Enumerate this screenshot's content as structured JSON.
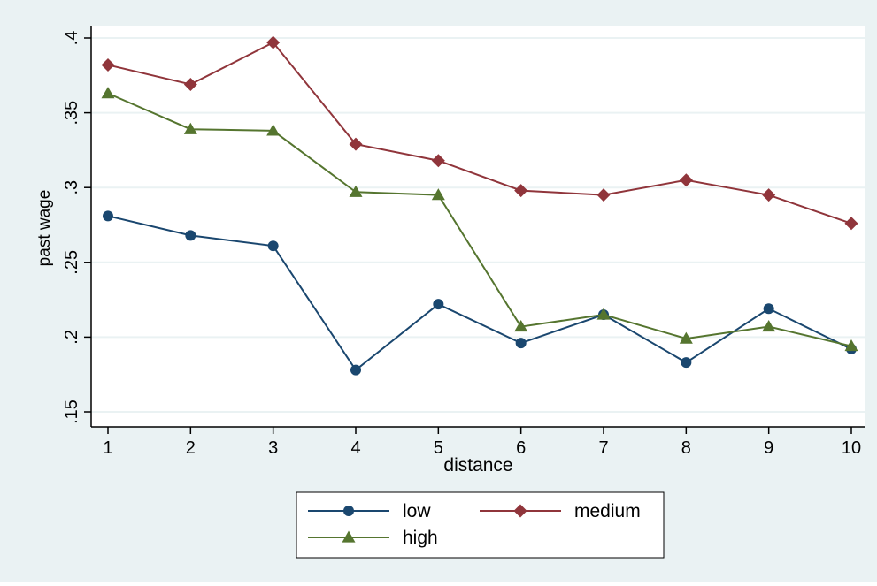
{
  "chart_data": {
    "type": "line",
    "title": "",
    "xlabel": "distance",
    "ylabel": "past wage",
    "xlim": [
      1,
      10
    ],
    "ylim": [
      0.15,
      0.4
    ],
    "x_ticks": [
      1,
      2,
      3,
      4,
      5,
      6,
      7,
      8,
      9,
      10
    ],
    "x_tick_labels": [
      "1",
      "2",
      "3",
      "4",
      "5",
      "6",
      "7",
      "8",
      "9",
      "10"
    ],
    "y_ticks": [
      0.15,
      0.2,
      0.25,
      0.3,
      0.35,
      0.4
    ],
    "y_tick_labels": [
      ".15",
      ".2",
      ".25",
      ".3",
      ".35",
      ".4"
    ],
    "grid": "horizontal",
    "legend_position": "bottom",
    "x": [
      1,
      2,
      3,
      4,
      5,
      6,
      7,
      8,
      9,
      10
    ],
    "series": [
      {
        "name": "low",
        "color": "#1a476f",
        "marker": "circle",
        "values": [
          0.281,
          0.268,
          0.261,
          0.178,
          0.222,
          0.196,
          0.215,
          0.183,
          0.219,
          0.192
        ]
      },
      {
        "name": "medium",
        "color": "#90353b",
        "marker": "diamond",
        "values": [
          0.382,
          0.369,
          0.397,
          0.329,
          0.318,
          0.298,
          0.295,
          0.305,
          0.295,
          0.276
        ]
      },
      {
        "name": "high",
        "color": "#55752f",
        "marker": "triangle",
        "values": [
          0.363,
          0.339,
          0.338,
          0.297,
          0.295,
          0.207,
          0.215,
          0.199,
          0.207,
          0.194
        ]
      }
    ]
  },
  "colors": {
    "outer_background": "#eaf2f3",
    "plot_background": "#ffffff",
    "grid": "#eaf2f3",
    "axis": "#000000"
  }
}
